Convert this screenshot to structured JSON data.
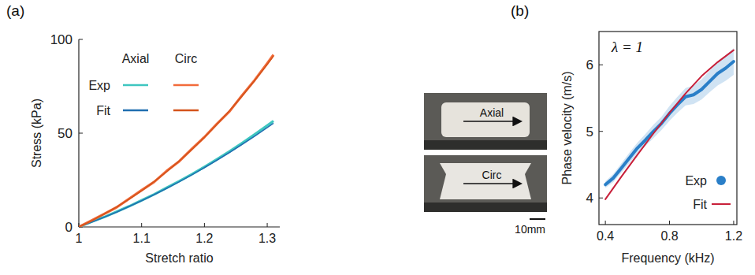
{
  "chart_data": [
    {
      "type": "line",
      "panel": "(a)",
      "x_label": "Stretch ratio",
      "y_label": "Stress (kPa)",
      "x": [
        1,
        1.02,
        1.04,
        1.06,
        1.08,
        1.1,
        1.12,
        1.14,
        1.16,
        1.18,
        1.2,
        1.22,
        1.24,
        1.26,
        1.28,
        1.3,
        1.31
      ],
      "xlim": [
        1,
        1.32
      ],
      "xticks": [
        1,
        1.1,
        1.2,
        1.3
      ],
      "ylim": [
        0,
        100
      ],
      "yticks": [
        0,
        50,
        100
      ],
      "legend": "upper left",
      "series": [
        {
          "name": "Exp",
          "group": "Axial",
          "color": "#3ec6c0",
          "line_style": "solid",
          "values": [
            0,
            2.7,
            5.2,
            8.1,
            11.0,
            14.2,
            17.4,
            20.9,
            24.4,
            28.1,
            32.0,
            36.1,
            40.3,
            44.7,
            49.3,
            54.1,
            56.5
          ]
        },
        {
          "name": "Fit",
          "group": "Axial",
          "color": "#1f6fb0",
          "line_style": "solid",
          "values": [
            0,
            2.5,
            5.1,
            7.9,
            10.9,
            14.0,
            17.2,
            20.6,
            24.1,
            27.8,
            31.6,
            35.6,
            39.7,
            44.0,
            48.4,
            53.0,
            55.3
          ]
        },
        {
          "name": "Exp",
          "group": "Circ",
          "color": "#f26b3a",
          "line_style": "solid",
          "values": [
            0,
            3.4,
            6.9,
            10.4,
            15.0,
            19.6,
            24.0,
            29.9,
            35.0,
            41.6,
            47.9,
            55.0,
            61.6,
            70.2,
            78.3,
            87.2,
            91.8
          ]
        },
        {
          "name": "Fit",
          "group": "Circ",
          "color": "#d4541c",
          "line_style": "solid",
          "values": [
            0,
            3.2,
            6.8,
            10.6,
            14.8,
            19.3,
            24.2,
            29.5,
            35.2,
            41.3,
            47.8,
            54.7,
            62.0,
            69.8,
            78.0,
            86.7,
            91.2
          ]
        }
      ]
    },
    {
      "type": "line",
      "panel": "(b)",
      "x_label": "Frequency (kHz)",
      "y_label": "Phase velocity (m/s)",
      "annotations": [
        {
          "text": "λ = 1"
        }
      ],
      "xlim": [
        0.36,
        1.22
      ],
      "xticks": [
        0.4,
        0.8,
        1.2
      ],
      "ylim": [
        3.6,
        6.5
      ],
      "yticks": [
        4,
        5,
        6
      ],
      "legend": "lower right",
      "series": [
        {
          "name": "Exp",
          "color": "#2a7fc8",
          "marker": "circle",
          "line_style": "solid",
          "x": [
            0.4,
            0.45,
            0.5,
            0.55,
            0.6,
            0.65,
            0.7,
            0.75,
            0.8,
            0.85,
            0.9,
            0.95,
            1.0,
            1.05,
            1.1,
            1.15,
            1.2
          ],
          "values": [
            4.2,
            4.3,
            4.45,
            4.6,
            4.75,
            4.87,
            5.0,
            5.12,
            5.27,
            5.4,
            5.52,
            5.55,
            5.63,
            5.75,
            5.87,
            5.95,
            6.05
          ],
          "error": [
            0.05,
            0.06,
            0.07,
            0.08,
            0.08,
            0.09,
            0.1,
            0.1,
            0.11,
            0.12,
            0.13,
            0.14,
            0.15,
            0.16,
            0.18,
            0.19,
            0.2
          ]
        },
        {
          "name": "Fit",
          "color": "#c8203a",
          "line_style": "solid",
          "x": [
            0.4,
            0.5,
            0.6,
            0.7,
            0.8,
            0.9,
            1.0,
            1.1,
            1.2
          ],
          "values": [
            3.98,
            4.32,
            4.65,
            4.97,
            5.28,
            5.57,
            5.83,
            6.04,
            6.22
          ]
        }
      ]
    }
  ],
  "images": [
    {
      "label": "Axial"
    },
    {
      "label": "Circ"
    }
  ],
  "scale_bar": {
    "label": "10mm"
  }
}
